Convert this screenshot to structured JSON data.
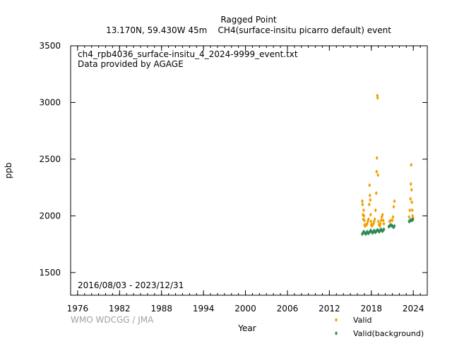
{
  "header": {
    "title": "Ragged Point",
    "subtitle": "13.170N, 59.430W 45m    CH4(surface-insitu picarro default) event"
  },
  "annotations": {
    "filename": "ch4_rpb4036_surface-insitu_4_2024-9999_event.txt",
    "provider": "Data provided by AGAGE",
    "date_range": "2016/08/03 - 2023/12/31"
  },
  "credit": "WMO WDCGG / JMA",
  "colors": {
    "valid": "#f0a000",
    "background": "#2e8b57",
    "axis": "#000000",
    "credit": "#a0a0a0"
  },
  "chart_data": {
    "type": "scatter",
    "xlabel": "Year",
    "ylabel": "ppb",
    "xlim": [
      1975,
      2026
    ],
    "ylim": [
      1300,
      3500
    ],
    "xticks": [
      1976,
      1982,
      1988,
      1994,
      2000,
      2006,
      2012,
      2018,
      2024
    ],
    "yticks": [
      1500,
      2000,
      2500,
      3000,
      3500
    ],
    "grid": false,
    "legend_position": "bottom-right",
    "series": [
      {
        "name": "Valid",
        "color": "#f0a000",
        "x": [
          2016.7,
          2016.75,
          2016.8,
          2016.85,
          2016.9,
          2016.95,
          2017.0,
          2017.05,
          2017.1,
          2017.2,
          2017.3,
          2017.4,
          2017.5,
          2017.6,
          2017.7,
          2017.75,
          2017.8,
          2017.85,
          2017.9,
          2017.95,
          2018.0,
          2018.05,
          2018.1,
          2018.2,
          2018.3,
          2018.4,
          2018.5,
          2018.6,
          2018.7,
          2018.75,
          2018.8,
          2018.85,
          2018.9,
          2018.95,
          2019.0,
          2019.1,
          2019.2,
          2019.3,
          2019.4,
          2019.5,
          2019.6,
          2019.7,
          2019.8,
          2020.6,
          2020.8,
          2021.0,
          2021.1,
          2021.2,
          2021.3,
          2023.4,
          2023.5,
          2023.6,
          2023.65,
          2023.7,
          2023.75,
          2023.8,
          2023.85,
          2023.9,
          2023.95
        ],
        "y": [
          2130,
          2100,
          2010,
          1970,
          2050,
          2000,
          1960,
          1920,
          1910,
          1920,
          1920,
          1930,
          1950,
          1970,
          2100,
          2270,
          2180,
          2140,
          2010,
          1950,
          1920,
          1910,
          1920,
          1920,
          1930,
          1950,
          1970,
          2050,
          2200,
          2390,
          2510,
          3060,
          3040,
          2360,
          1950,
          1920,
          1910,
          1930,
          1960,
          1990,
          2010,
          1960,
          1930,
          1950,
          1960,
          1960,
          1990,
          2080,
          2130,
          1990,
          2050,
          2150,
          2280,
          2450,
          2230,
          2120,
          2050,
          2000,
          1980
        ]
      },
      {
        "name": "Valid(background)",
        "color": "#2e8b57",
        "x": [
          2016.7,
          2016.8,
          2016.9,
          2017.0,
          2017.1,
          2017.2,
          2017.3,
          2017.4,
          2017.5,
          2017.6,
          2017.7,
          2017.8,
          2017.9,
          2018.0,
          2018.1,
          2018.2,
          2018.3,
          2018.4,
          2018.5,
          2018.6,
          2018.7,
          2018.8,
          2018.9,
          2019.0,
          2019.1,
          2019.2,
          2019.3,
          2019.4,
          2019.5,
          2019.6,
          2019.7,
          2019.8,
          2020.5,
          2020.6,
          2020.7,
          2020.8,
          2020.9,
          2021.0,
          2021.1,
          2021.2,
          2021.3,
          2023.4,
          2023.5,
          2023.6,
          2023.7,
          2023.8,
          2023.9,
          2023.95
        ],
        "y": [
          1840,
          1850,
          1860,
          1855,
          1845,
          1840,
          1850,
          1860,
          1850,
          1845,
          1855,
          1860,
          1870,
          1865,
          1855,
          1850,
          1860,
          1870,
          1860,
          1855,
          1865,
          1870,
          1875,
          1870,
          1860,
          1865,
          1875,
          1880,
          1870,
          1865,
          1875,
          1880,
          1905,
          1910,
          1915,
          1920,
          1915,
          1910,
          1905,
          1900,
          1910,
          1950,
          1955,
          1960,
          1965,
          1960,
          1965,
          1970
        ]
      }
    ]
  }
}
